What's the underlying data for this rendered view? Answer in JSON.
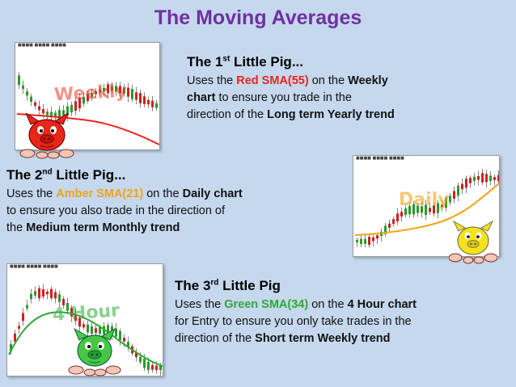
{
  "title": "The Moving Averages",
  "pig1": {
    "heading_pre": "The 1",
    "heading_sup": "st",
    "heading_post": " Little Pig...",
    "t1": "Uses the ",
    "t2": "Red SMA(55)",
    "t3": " on the ",
    "t4": "Weekly",
    "t5": "chart",
    "t6": " to ensure you trade in the",
    "t7": "direction of the ",
    "t8": "Long term Yearly trend",
    "chart_label": "Weekly",
    "color": "#e8261a"
  },
  "pig2": {
    "heading_pre": "The 2",
    "heading_sup": "nd",
    "heading_post": " Little Pig...",
    "t1": "Uses the ",
    "t2": "Amber SMA(21)",
    "t3": " on the ",
    "t4": "Daily chart",
    "t5": "to ensure you also trade in the direction of",
    "t6": "the ",
    "t7": "Medium term Monthly trend",
    "chart_label": "Daily",
    "color": "#f0a318"
  },
  "pig3": {
    "heading_pre": "The 3",
    "heading_sup": "rd",
    "heading_post": " Little Pig",
    "t1": "Uses the ",
    "t2": "Green SMA(34)",
    "t3": " on the ",
    "t4": "4 Hour chart",
    "t5": "for Entry to ensure you only take trades in the",
    "t6": "direction of the ",
    "t7": "Short term Weekly trend",
    "chart_label": "4 Hour",
    "color": "#2ea836"
  }
}
